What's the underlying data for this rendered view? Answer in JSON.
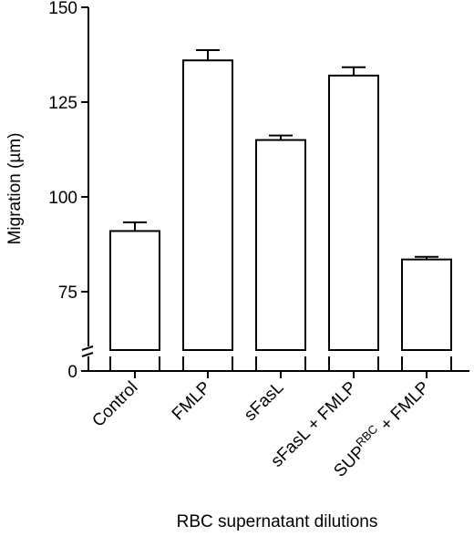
{
  "chart_data": {
    "type": "bar",
    "xlabel": "RBC supernatant dilutions",
    "ylabel": "Migration (µm)",
    "ylim": [
      75,
      150
    ],
    "axis_break": true,
    "y_ticks": [
      0,
      75,
      100,
      125,
      150
    ],
    "y_tick_labels": [
      "0",
      "75",
      "100",
      "125",
      "150"
    ],
    "categories": [
      {
        "main": "Control",
        "sup": "",
        "tail": ""
      },
      {
        "main": "FMLP",
        "sup": "",
        "tail": ""
      },
      {
        "main": "sFasL",
        "sup": "",
        "tail": ""
      },
      {
        "main": "sFasL + FMLP",
        "sup": "",
        "tail": ""
      },
      {
        "main": "SUP",
        "sup": "RBC",
        "tail": " + FMLP"
      }
    ],
    "values": [
      91,
      136,
      115,
      132,
      83.5
    ],
    "errors": [
      2.3,
      2.7,
      1.2,
      2.2,
      0.7
    ],
    "bar_color": "#ffffff",
    "edge_color": "#000000"
  }
}
